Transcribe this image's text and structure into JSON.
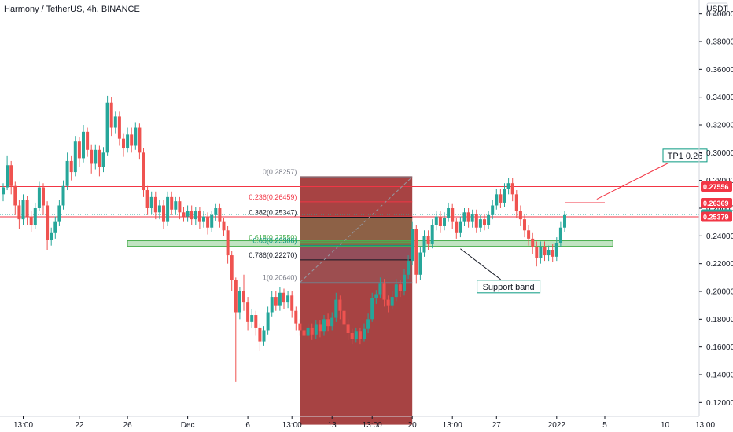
{
  "header": {
    "title": "Harmony / TetherUS, 4h, BINANCE",
    "currency": "USDT"
  },
  "chart_data": {
    "type": "candlestick",
    "title": "Harmony / TetherUS, 4h, BINANCE",
    "ylabel": "USDT",
    "ylim": [
      0.11,
      0.41
    ],
    "y_ticks": [
      {
        "value": 0.4,
        "label": "0.40000"
      },
      {
        "value": 0.38,
        "label": "0.38000"
      },
      {
        "value": 0.36,
        "label": "0.36000"
      },
      {
        "value": 0.34,
        "label": "0.34000"
      },
      {
        "value": 0.32,
        "label": "0.32000"
      },
      {
        "value": 0.3,
        "label": "0.30000"
      },
      {
        "value": 0.28,
        "label": "0.28000"
      },
      {
        "value": 0.26,
        "label": "0.26000"
      },
      {
        "value": 0.24,
        "label": "0.24000"
      },
      {
        "value": 0.22,
        "label": "0.22000"
      },
      {
        "value": 0.2,
        "label": "0.20000"
      },
      {
        "value": 0.18,
        "label": "0.18000"
      },
      {
        "value": 0.16,
        "label": "0.16000"
      },
      {
        "value": 0.14,
        "label": "0.14000"
      },
      {
        "value": 0.12,
        "label": "0.12000"
      }
    ],
    "x_ticks": [
      {
        "i": 5,
        "label": "13:00"
      },
      {
        "i": 19,
        "label": "22"
      },
      {
        "i": 31,
        "label": "26"
      },
      {
        "i": 46,
        "label": "Dec"
      },
      {
        "i": 61,
        "label": "6"
      },
      {
        "i": 72,
        "label": "13:00"
      },
      {
        "i": 82,
        "label": "13"
      },
      {
        "i": 92,
        "label": "13:00"
      },
      {
        "i": 102,
        "label": "20"
      },
      {
        "i": 112,
        "label": "13:00"
      },
      {
        "i": 123,
        "label": "27"
      },
      {
        "i": 138,
        "label": "2022"
      },
      {
        "i": 150,
        "label": "5"
      },
      {
        "i": 165,
        "label": "10"
      },
      {
        "i": 175,
        "label": "13:00"
      }
    ],
    "grid": false,
    "n_slots": 185,
    "candles": [
      [
        0.27,
        0.275,
        0.265,
        0.278
      ],
      [
        0.275,
        0.291,
        0.273,
        0.298
      ],
      [
        0.291,
        0.276,
        0.27,
        0.294
      ],
      [
        0.276,
        0.262,
        0.255,
        0.279
      ],
      [
        0.262,
        0.252,
        0.245,
        0.266
      ],
      [
        0.252,
        0.266,
        0.248,
        0.27
      ],
      [
        0.266,
        0.254,
        0.248,
        0.269
      ],
      [
        0.254,
        0.248,
        0.243,
        0.258
      ],
      [
        0.248,
        0.26,
        0.245,
        0.264
      ],
      [
        0.26,
        0.275,
        0.258,
        0.279
      ],
      [
        0.275,
        0.262,
        0.255,
        0.278
      ],
      [
        0.262,
        0.237,
        0.23,
        0.265
      ],
      [
        0.237,
        0.242,
        0.233,
        0.246
      ],
      [
        0.242,
        0.25,
        0.238,
        0.254
      ],
      [
        0.25,
        0.262,
        0.247,
        0.266
      ],
      [
        0.262,
        0.276,
        0.259,
        0.28
      ],
      [
        0.276,
        0.294,
        0.273,
        0.3
      ],
      [
        0.294,
        0.286,
        0.28,
        0.298
      ],
      [
        0.286,
        0.308,
        0.283,
        0.312
      ],
      [
        0.308,
        0.296,
        0.29,
        0.311
      ],
      [
        0.296,
        0.315,
        0.293,
        0.32
      ],
      [
        0.315,
        0.302,
        0.297,
        0.318
      ],
      [
        0.302,
        0.292,
        0.285,
        0.306
      ],
      [
        0.292,
        0.302,
        0.288,
        0.306
      ],
      [
        0.302,
        0.29,
        0.283,
        0.305
      ],
      [
        0.29,
        0.3,
        0.286,
        0.304
      ],
      [
        0.3,
        0.336,
        0.298,
        0.341
      ],
      [
        0.336,
        0.318,
        0.312,
        0.34
      ],
      [
        0.318,
        0.326,
        0.314,
        0.33
      ],
      [
        0.326,
        0.31,
        0.305,
        0.33
      ],
      [
        0.31,
        0.303,
        0.297,
        0.314
      ],
      [
        0.303,
        0.313,
        0.3,
        0.318
      ],
      [
        0.313,
        0.305,
        0.3,
        0.318
      ],
      [
        0.305,
        0.318,
        0.302,
        0.322
      ],
      [
        0.318,
        0.3,
        0.295,
        0.321
      ],
      [
        0.3,
        0.273,
        0.268,
        0.303
      ],
      [
        0.273,
        0.26,
        0.255,
        0.276
      ],
      [
        0.26,
        0.268,
        0.256,
        0.272
      ],
      [
        0.268,
        0.257,
        0.252,
        0.272
      ],
      [
        0.257,
        0.262,
        0.252,
        0.266
      ],
      [
        0.262,
        0.25,
        0.245,
        0.266
      ],
      [
        0.25,
        0.268,
        0.247,
        0.272
      ],
      [
        0.268,
        0.259,
        0.255,
        0.272
      ],
      [
        0.259,
        0.265,
        0.255,
        0.268
      ],
      [
        0.265,
        0.257,
        0.252,
        0.268
      ],
      [
        0.257,
        0.254,
        0.25,
        0.261
      ],
      [
        0.254,
        0.258,
        0.25,
        0.262
      ],
      [
        0.258,
        0.252,
        0.248,
        0.262
      ],
      [
        0.252,
        0.258,
        0.248,
        0.261
      ],
      [
        0.258,
        0.25,
        0.245,
        0.261
      ],
      [
        0.25,
        0.254,
        0.246,
        0.258
      ],
      [
        0.254,
        0.246,
        0.241,
        0.257
      ],
      [
        0.246,
        0.255,
        0.243,
        0.258
      ],
      [
        0.255,
        0.26,
        0.251,
        0.263
      ],
      [
        0.26,
        0.25,
        0.246,
        0.263
      ],
      [
        0.25,
        0.244,
        0.24,
        0.253
      ],
      [
        0.244,
        0.226,
        0.22,
        0.247
      ],
      [
        0.226,
        0.208,
        0.2,
        0.229
      ],
      [
        0.208,
        0.185,
        0.135,
        0.21
      ],
      [
        0.185,
        0.2,
        0.18,
        0.203
      ],
      [
        0.2,
        0.192,
        0.186,
        0.212
      ],
      [
        0.192,
        0.178,
        0.172,
        0.196
      ],
      [
        0.178,
        0.183,
        0.174,
        0.187
      ],
      [
        0.183,
        0.174,
        0.168,
        0.186
      ],
      [
        0.174,
        0.164,
        0.157,
        0.177
      ],
      [
        0.164,
        0.172,
        0.161,
        0.175
      ],
      [
        0.172,
        0.185,
        0.169,
        0.189
      ],
      [
        0.185,
        0.196,
        0.182,
        0.2
      ],
      [
        0.196,
        0.19,
        0.186,
        0.2
      ],
      [
        0.19,
        0.199,
        0.186,
        0.203
      ],
      [
        0.199,
        0.192,
        0.187,
        0.202
      ],
      [
        0.192,
        0.197,
        0.188,
        0.2
      ],
      [
        0.197,
        0.186,
        0.181,
        0.2
      ],
      [
        0.186,
        0.177,
        0.172,
        0.189
      ],
      [
        0.177,
        0.172,
        0.168,
        0.18
      ],
      [
        0.172,
        0.168,
        0.163,
        0.176
      ],
      [
        0.168,
        0.174,
        0.165,
        0.177
      ],
      [
        0.174,
        0.169,
        0.165,
        0.177
      ],
      [
        0.169,
        0.176,
        0.166,
        0.179
      ],
      [
        0.176,
        0.171,
        0.167,
        0.179
      ],
      [
        0.171,
        0.18,
        0.168,
        0.183
      ],
      [
        0.18,
        0.175,
        0.171,
        0.184
      ],
      [
        0.175,
        0.181,
        0.172,
        0.185
      ],
      [
        0.181,
        0.194,
        0.178,
        0.199
      ],
      [
        0.194,
        0.186,
        0.18,
        0.197
      ],
      [
        0.186,
        0.176,
        0.171,
        0.189
      ],
      [
        0.176,
        0.17,
        0.165,
        0.18
      ],
      [
        0.17,
        0.166,
        0.162,
        0.173
      ],
      [
        0.166,
        0.171,
        0.163,
        0.174
      ],
      [
        0.171,
        0.166,
        0.162,
        0.174
      ],
      [
        0.166,
        0.173,
        0.164,
        0.177
      ],
      [
        0.173,
        0.18,
        0.17,
        0.184
      ],
      [
        0.18,
        0.195,
        0.178,
        0.199
      ],
      [
        0.195,
        0.198,
        0.191,
        0.201
      ],
      [
        0.198,
        0.206,
        0.195,
        0.21
      ],
      [
        0.206,
        0.194,
        0.189,
        0.209
      ],
      [
        0.194,
        0.19,
        0.185,
        0.197
      ],
      [
        0.19,
        0.196,
        0.187,
        0.2
      ],
      [
        0.196,
        0.205,
        0.193,
        0.209
      ],
      [
        0.205,
        0.2,
        0.196,
        0.208
      ],
      [
        0.2,
        0.212,
        0.197,
        0.216
      ],
      [
        0.212,
        0.222,
        0.209,
        0.226
      ],
      [
        0.222,
        0.245,
        0.219,
        0.25
      ],
      [
        0.245,
        0.212,
        0.206,
        0.248
      ],
      [
        0.212,
        0.228,
        0.208,
        0.232
      ],
      [
        0.228,
        0.24,
        0.225,
        0.244
      ],
      [
        0.24,
        0.234,
        0.23,
        0.244
      ],
      [
        0.234,
        0.248,
        0.231,
        0.252
      ],
      [
        0.248,
        0.254,
        0.244,
        0.258
      ],
      [
        0.254,
        0.247,
        0.242,
        0.258
      ],
      [
        0.247,
        0.253,
        0.244,
        0.257
      ],
      [
        0.253,
        0.26,
        0.25,
        0.264
      ],
      [
        0.26,
        0.25,
        0.245,
        0.263
      ],
      [
        0.25,
        0.242,
        0.238,
        0.253
      ],
      [
        0.242,
        0.25,
        0.239,
        0.254
      ],
      [
        0.25,
        0.257,
        0.247,
        0.26
      ],
      [
        0.257,
        0.25,
        0.246,
        0.26
      ],
      [
        0.25,
        0.256,
        0.246,
        0.259
      ],
      [
        0.256,
        0.246,
        0.242,
        0.259
      ],
      [
        0.246,
        0.252,
        0.243,
        0.255
      ],
      [
        0.252,
        0.248,
        0.244,
        0.256
      ],
      [
        0.248,
        0.255,
        0.245,
        0.258
      ],
      [
        0.255,
        0.262,
        0.252,
        0.266
      ],
      [
        0.262,
        0.27,
        0.259,
        0.274
      ],
      [
        0.27,
        0.264,
        0.26,
        0.274
      ],
      [
        0.264,
        0.274,
        0.261,
        0.278
      ],
      [
        0.274,
        0.278,
        0.27,
        0.282
      ],
      [
        0.278,
        0.27,
        0.265,
        0.282
      ],
      [
        0.27,
        0.258,
        0.253,
        0.273
      ],
      [
        0.258,
        0.252,
        0.247,
        0.262
      ],
      [
        0.252,
        0.244,
        0.239,
        0.255
      ],
      [
        0.244,
        0.238,
        0.233,
        0.248
      ],
      [
        0.238,
        0.232,
        0.227,
        0.242
      ],
      [
        0.232,
        0.224,
        0.218,
        0.236
      ],
      [
        0.224,
        0.232,
        0.22,
        0.236
      ],
      [
        0.232,
        0.226,
        0.222,
        0.236
      ],
      [
        0.226,
        0.23,
        0.222,
        0.233
      ],
      [
        0.23,
        0.225,
        0.221,
        0.234
      ],
      [
        0.225,
        0.235,
        0.222,
        0.239
      ],
      [
        0.235,
        0.246,
        0.232,
        0.25
      ],
      [
        0.246,
        0.255,
        0.243,
        0.258
      ]
    ],
    "regions": [
      {
        "label": "entry-box-red",
        "i0": 74,
        "i1": 102,
        "y0": 0.104,
        "y1": 0.283
      },
      {
        "label": "fib-zone-green",
        "i0": 74,
        "i1": 102,
        "y0": 0.234,
        "y1": 0.2535
      },
      {
        "label": "fib-zone-blue",
        "i0": 74,
        "i1": 102,
        "y0": 0.2227,
        "y1": 0.2335
      },
      {
        "label": "fib-zone-grey",
        "i0": 74,
        "i1": 102,
        "y0": 0.2064,
        "y1": 0.2227
      },
      {
        "label": "support-band",
        "i0": 31,
        "i1": 152,
        "y0": 0.2325,
        "y1": 0.2365
      }
    ],
    "fib_levels": [
      {
        "label": "0(0.28257)",
        "value": 0.28257,
        "color": "#787b86"
      },
      {
        "label": "0.236(0.26459)",
        "value": 0.26459,
        "color": "#f23645"
      },
      {
        "label": "0.382(0.25347)",
        "value": 0.25347,
        "color": "#131722"
      },
      {
        "label": "0.618(0.23550)",
        "value": 0.2355,
        "color": "#4caf50"
      },
      {
        "label": "0.65(0.23306)",
        "value": 0.23306,
        "color": "#089981"
      },
      {
        "label": "0.786(0.22270)",
        "value": 0.2227,
        "color": "#131722"
      },
      {
        "label": "1(0.20640)",
        "value": 0.2064,
        "color": "#787b86"
      }
    ],
    "horizontal_lines": [
      {
        "value": 0.27556,
        "color": "#f23645"
      },
      {
        "value": 0.26369,
        "color": "#f23645"
      },
      {
        "value": 0.25379,
        "color": "#f23645"
      }
    ],
    "price_tags": [
      {
        "value": 0.27556,
        "label": "0.27556",
        "color": "#f23645"
      },
      {
        "value": 0.26369,
        "label": "0.26369",
        "color": "#f23645"
      },
      {
        "value": 0.25546,
        "label": "0.25546",
        "color": "#26a69a"
      },
      {
        "value": 0.25379,
        "label": "0.25379",
        "color": "#f23645"
      }
    ],
    "annotations": [
      {
        "text": "TP1 0.26",
        "i": 170,
        "y": 0.298
      },
      {
        "text": "Support band",
        "i": 126,
        "y": 0.2035
      }
    ],
    "colors": {
      "up": "#26a69a",
      "down": "#ef5350"
    }
  }
}
